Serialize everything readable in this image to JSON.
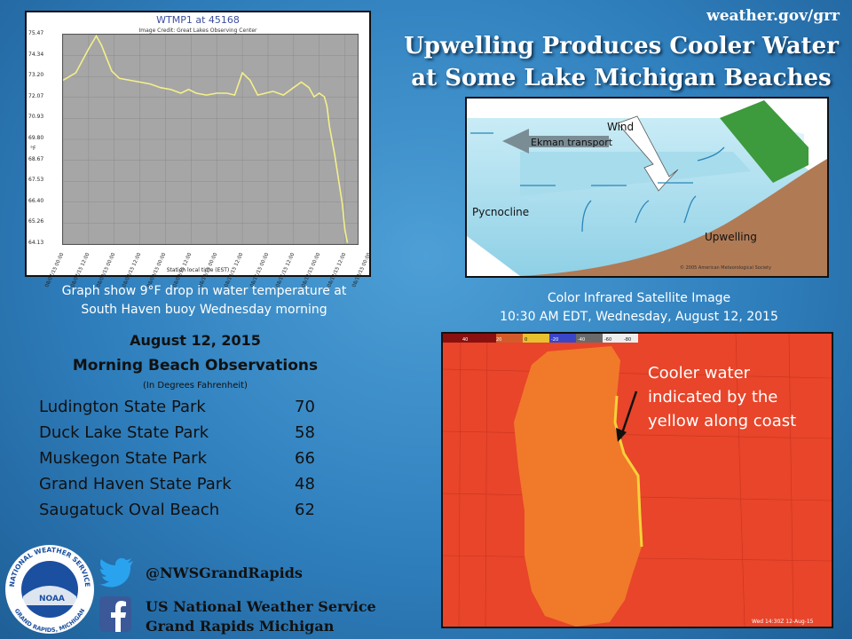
{
  "site": "weather.gov/grr",
  "headline": {
    "line1": "Upwelling Produces Cooler Water",
    "line2": "at Some Lake Michigan Beaches"
  },
  "graph": {
    "title": "WTMP1 at 45168",
    "credit": "Image Credit: Great Lakes Observing Center",
    "y_unit": "°F",
    "xlabel": "Station local time (EST)",
    "chart_data": {
      "type": "line",
      "y_ticks": [
        "75.47",
        "74.34",
        "73.20",
        "72.07",
        "70.93",
        "69.80",
        "68.67",
        "67.53",
        "66.40",
        "65.26",
        "64.13"
      ],
      "x_ticks": [
        "08/07/15 00:00",
        "08/07/15 12:00",
        "08/08/15 00:00",
        "08/08/15 12:00",
        "08/09/15 00:00",
        "08/09/15 12:00",
        "08/10/15 00:00",
        "08/10/15 12:00",
        "08/11/15 00:00",
        "08/11/15 12:00",
        "08/12/15 00:00",
        "08/12/15 12:00",
        "08/13/15 00:00"
      ],
      "ylim": [
        64.13,
        75.47
      ],
      "series": [
        {
          "color": "#f4f08a",
          "x": [
            0,
            0.5,
            1.0,
            1.3,
            1.5,
            1.9,
            2.2,
            2.6,
            3.0,
            3.4,
            3.8,
            4.2,
            4.6,
            4.9,
            5.2,
            5.6,
            6.0,
            6.4,
            6.7,
            7.0,
            7.3,
            7.6,
            7.9,
            8.2,
            8.6,
            9.0,
            9.3,
            9.6,
            9.8,
            10.0,
            10.2,
            10.3,
            10.4,
            10.6,
            10.8,
            10.9,
            11.0,
            11.1
          ],
          "y": [
            73.0,
            73.4,
            74.7,
            75.4,
            74.9,
            73.5,
            73.1,
            73.0,
            72.9,
            72.8,
            72.6,
            72.5,
            72.3,
            72.5,
            72.3,
            72.2,
            72.3,
            72.3,
            72.2,
            73.4,
            73.0,
            72.2,
            72.3,
            72.4,
            72.2,
            72.6,
            72.9,
            72.6,
            72.1,
            72.3,
            72.1,
            71.6,
            70.5,
            69.0,
            67.2,
            66.3,
            64.9,
            64.2
          ]
        }
      ]
    }
  },
  "graph_caption": {
    "line1": "Graph show 9°F drop in water temperature at",
    "line2": "South Haven buoy Wednesday morning"
  },
  "observations": {
    "date": "August 12, 2015",
    "title": "Morning Beach Observations",
    "units": "(In Degrees  Fahrenheit)",
    "rows": [
      {
        "name": "Ludington State Park",
        "value": "70"
      },
      {
        "name": "Duck Lake State Park",
        "value": "58"
      },
      {
        "name": "Muskegon State Park",
        "value": "66"
      },
      {
        "name": "Grand Haven State Park",
        "value": "48"
      },
      {
        "name": "Saugatuck Oval Beach",
        "value": "62"
      }
    ]
  },
  "diagram": {
    "wind": "Wind",
    "ekman": "Ekman transport",
    "pycnocline": "Pycnocline",
    "upwelling": "Upwelling",
    "credit": "© 2005 American Meteorological Society"
  },
  "satellite": {
    "caption_line1": "Color Infrared Satellite Image",
    "caption_line2": "10:30 AM EDT, Wednesday, August 12, 2015",
    "note": "Cooler water indicated by the yellow along coast",
    "timestamp": "Wed 14:30Z 12-Aug-15",
    "colorbar": [
      "40",
      "20",
      "0",
      "-20",
      "-40",
      "-60",
      "-80"
    ]
  },
  "logo": {
    "top": "NATIONAL WEATHER SERVICE",
    "bottom": "GRAND RAPIDS, MICHIGAN",
    "center": "NOAA"
  },
  "social": {
    "twitter": "@NWSGrandRapids",
    "facebook_line1": "US National Weather Service",
    "facebook_line2": "Grand Rapids Michigan"
  },
  "colors": {
    "background": "#2f7fbd",
    "lake_water": "#f07a2a",
    "land": "#e8452a",
    "cool_coast": "#f5d23a"
  }
}
